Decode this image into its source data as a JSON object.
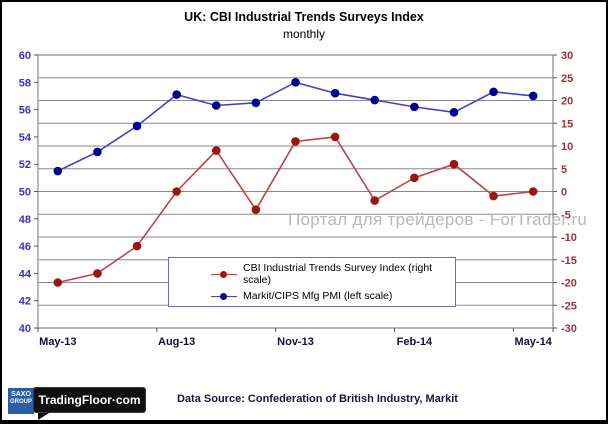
{
  "watermark": "Портал для трейдеров - ForTrader.ru",
  "footer": {
    "data_source": "Data Source: Confederation of British Industry, Markit",
    "logo": {
      "saxo_line1": "SAXO",
      "saxo_line2": "GROUP",
      "tradingfloor": "TradingFloor·com"
    }
  },
  "colors": {
    "grid": "#8a8a8a",
    "tick": "#555555",
    "frame": "#000000",
    "legend_border": "#6a6ac8",
    "watermark": "#b8b8b8",
    "x_label": "#101035",
    "left_axis": "#3333cc",
    "right_axis": "#9e3232"
  },
  "chart_data": {
    "type": "line",
    "title": "UK: CBI Industrial Trends Surveys Index",
    "subtitle": "monthly",
    "categories": [
      "May-13",
      "Jun-13",
      "Jul-13",
      "Aug-13",
      "Sep-13",
      "Oct-13",
      "Nov-13",
      "Dec-13",
      "Jan-14",
      "Feb-14",
      "Mar-14",
      "Apr-14",
      "May-14"
    ],
    "x_axis": {
      "tick_labels": [
        "May-13",
        "Aug-13",
        "Nov-13",
        "Feb-14",
        "May-14"
      ],
      "tick_indices": [
        0,
        3,
        6,
        9,
        12
      ]
    },
    "left_axis": {
      "min": 40,
      "max": 60,
      "step": 2,
      "ticks": [
        60,
        58,
        56,
        54,
        52,
        50,
        48,
        46,
        44,
        42,
        40
      ],
      "color": "#3333cc"
    },
    "right_axis": {
      "min": -30,
      "max": 30,
      "step": 5,
      "ticks": [
        30,
        25,
        20,
        15,
        10,
        5,
        0,
        -5,
        -10,
        -15,
        -20,
        -25,
        -30
      ],
      "color": "#9e3232"
    },
    "grid": {
      "orientation": "horizontal",
      "at": "right_axis_ticks",
      "color": "#8a8a8a"
    },
    "legend_position": "bottom-center-inside",
    "series": [
      {
        "name": "CBI Industrial Trends Survey Index",
        "legend_label": "CBI Industrial Trends Survey Index (right scale)",
        "axis": "right",
        "line_color": "#bf4343",
        "marker_color": "#9c1515",
        "values": [
          -20,
          -18,
          -12,
          0,
          9,
          -4,
          11,
          12,
          -2,
          3,
          6,
          -1,
          0
        ]
      },
      {
        "name": "Markit/CIPS Mfg PMI",
        "legend_label": "Markit/CIPS Mfg PMI (left scale)",
        "axis": "left",
        "line_color": "#4141c6",
        "marker_color": "#00008f",
        "values": [
          51.5,
          52.9,
          54.8,
          57.1,
          56.3,
          56.5,
          58.0,
          57.2,
          56.7,
          56.2,
          55.8,
          57.3,
          57.0
        ]
      }
    ]
  }
}
